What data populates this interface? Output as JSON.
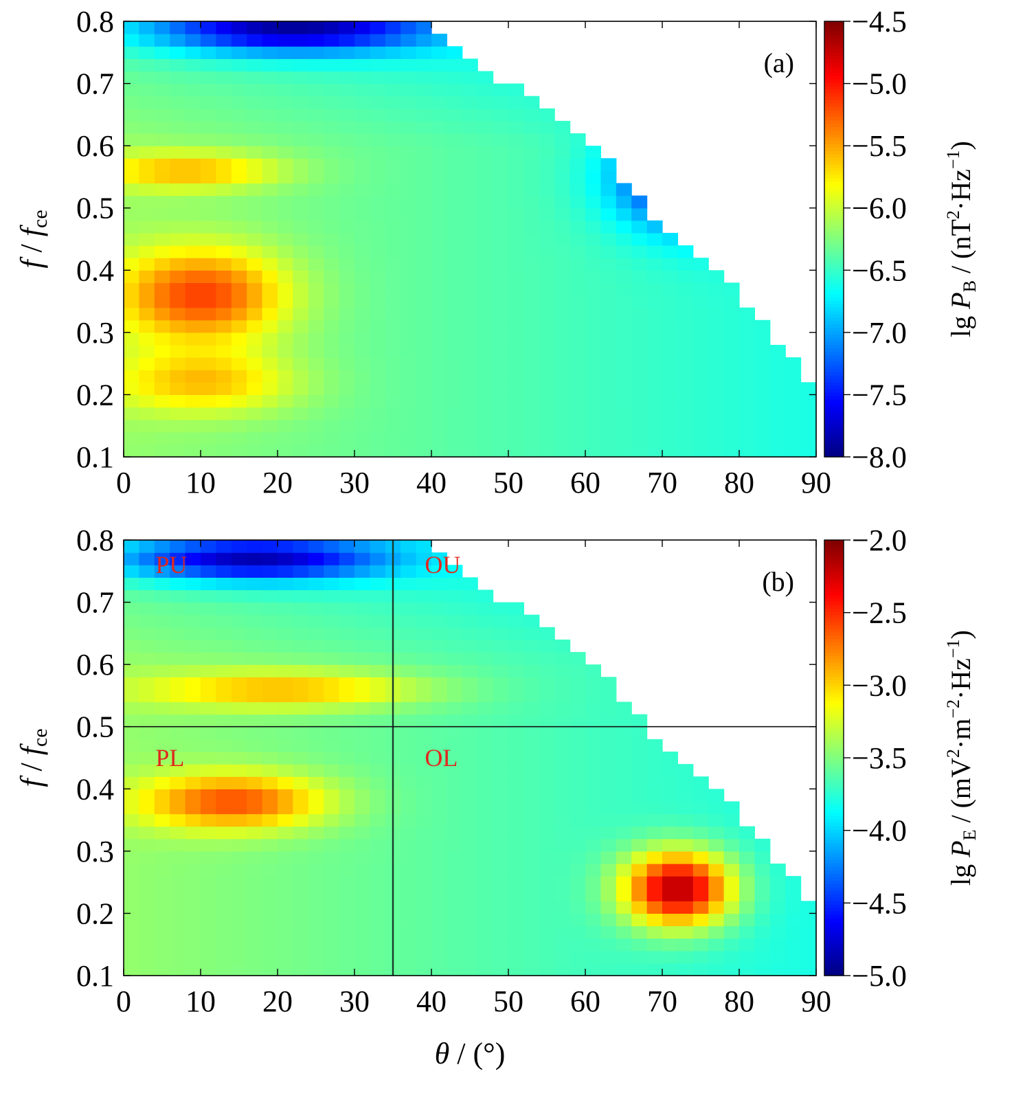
{
  "chart_data": [
    {
      "type": "heatmap",
      "panel_label": "(a)",
      "x": {
        "label_italic": "θ",
        "label_rest": " / (°)",
        "range": [
          0,
          90
        ],
        "ticks": [
          0,
          10,
          20,
          30,
          40,
          50,
          60,
          70,
          80,
          90
        ],
        "tick_labels": [
          "0",
          "10",
          "20",
          "30",
          "40",
          "50",
          "60",
          "70",
          "80",
          "90"
        ],
        "show_label": false
      },
      "y": {
        "label_italic_1": "f",
        "label_mid": " / ",
        "label_italic_2": "f",
        "label_sub": "ce",
        "range": [
          0.1,
          0.8
        ],
        "ticks": [
          0.1,
          0.2,
          0.3,
          0.4,
          0.5,
          0.6,
          0.7,
          0.8
        ],
        "tick_labels": [
          "0.1",
          "0.2",
          "0.3",
          "0.4",
          "0.5",
          "0.6",
          "0.7",
          "0.8"
        ]
      },
      "colorbar": {
        "label": "lg PB / (nT²·Hz⁻¹)",
        "label_parts": {
          "lg": "lg ",
          "P": "P",
          "sub": "B",
          "rest": " / (nT",
          "sup1": "2",
          "mid": "·Hz",
          "sup2": "−1",
          "end": ")"
        },
        "range": [
          -8.0,
          -4.5
        ],
        "ticks": [
          -8.0,
          -7.5,
          -7.0,
          -6.5,
          -6.0,
          -5.5,
          -5.0,
          -4.5
        ],
        "tick_labels": [
          "−8.0",
          "−7.5",
          "−7.0",
          "−6.5",
          "−6.0",
          "−5.5",
          "−5.0",
          "−4.5"
        ],
        "colormap": "jet"
      },
      "grid": false,
      "cells": {
        "theta_step": 2.0,
        "freq_step": 0.02
      },
      "boundary_theta_max": [
        {
          "f": 0.1,
          "theta": 90
        },
        {
          "f": 0.2,
          "theta": 90
        },
        {
          "f": 0.3,
          "theta": 84
        },
        {
          "f": 0.4,
          "theta": 77
        },
        {
          "f": 0.5,
          "theta": 68
        },
        {
          "f": 0.6,
          "theta": 62
        },
        {
          "f": 0.7,
          "theta": 50
        },
        {
          "f": 0.8,
          "theta": 38
        }
      ],
      "features": [
        {
          "theta": 10,
          "f": 0.36,
          "value": -5.15,
          "sigma_theta": 11,
          "sigma_f": 0.075
        },
        {
          "theta": 8,
          "f": 0.56,
          "value": -5.55,
          "sigma_theta": 12,
          "sigma_f": 0.03
        },
        {
          "theta": 10,
          "f": 0.22,
          "value": -5.6,
          "sigma_theta": 12,
          "sigma_f": 0.05
        },
        {
          "theta": 75,
          "f": 0.55,
          "value": -8.0,
          "sigma_theta": 10,
          "sigma_f": 0.08
        },
        {
          "theta": 22,
          "f": 0.79,
          "value": -7.9,
          "sigma_theta": 18,
          "sigma_f": 0.04
        }
      ]
    },
    {
      "type": "heatmap",
      "panel_label": "(b)",
      "x": {
        "label_italic": "θ",
        "label_rest": " / (°)",
        "range": [
          0,
          90
        ],
        "ticks": [
          0,
          10,
          20,
          30,
          40,
          50,
          60,
          70,
          80,
          90
        ],
        "tick_labels": [
          "0",
          "10",
          "20",
          "30",
          "40",
          "50",
          "60",
          "70",
          "80",
          "90"
        ],
        "show_label": true
      },
      "y": {
        "label_italic_1": "f",
        "label_mid": " / ",
        "label_italic_2": "f",
        "label_sub": "ce",
        "range": [
          0.1,
          0.8
        ],
        "ticks": [
          0.1,
          0.2,
          0.3,
          0.4,
          0.5,
          0.6,
          0.7,
          0.8
        ],
        "tick_labels": [
          "0.1",
          "0.2",
          "0.3",
          "0.4",
          "0.5",
          "0.6",
          "0.7",
          "0.8"
        ]
      },
      "colorbar": {
        "label": "lg PE / (mV²·m⁻²·Hz⁻¹)",
        "label_parts": {
          "lg": "lg ",
          "P": "P",
          "sub": "E",
          "rest": " / (mV",
          "sup1": "2",
          "mid": "·m",
          "sup2": "−2",
          "mid2": "·Hz",
          "sup3": "−1",
          "end": ")"
        },
        "range": [
          -5.0,
          -2.0
        ],
        "ticks": [
          -5.0,
          -4.5,
          -4.0,
          -3.5,
          -3.0,
          -2.5,
          -2.0
        ],
        "tick_labels": [
          "−5.0",
          "−4.5",
          "−4.0",
          "−3.5",
          "−3.0",
          "−2.5",
          "−2.0"
        ],
        "colormap": "jet"
      },
      "grid": false,
      "cells": {
        "theta_step": 2.0,
        "freq_step": 0.02
      },
      "boundary_theta_max": [
        {
          "f": 0.1,
          "theta": 90
        },
        {
          "f": 0.2,
          "theta": 90
        },
        {
          "f": 0.3,
          "theta": 84
        },
        {
          "f": 0.4,
          "theta": 77
        },
        {
          "f": 0.5,
          "theta": 68
        },
        {
          "f": 0.6,
          "theta": 62
        },
        {
          "f": 0.7,
          "theta": 50
        },
        {
          "f": 0.8,
          "theta": 38
        }
      ],
      "features": [
        {
          "theta": 14,
          "f": 0.38,
          "value": -2.6,
          "sigma_theta": 12,
          "sigma_f": 0.045
        },
        {
          "theta": 72,
          "f": 0.24,
          "value": -2.15,
          "sigma_theta": 7,
          "sigma_f": 0.06
        },
        {
          "theta": 20,
          "f": 0.56,
          "value": -2.9,
          "sigma_theta": 18,
          "sigma_f": 0.03
        },
        {
          "theta": 17,
          "f": 0.77,
          "value": -4.85,
          "sigma_theta": 17,
          "sigma_f": 0.035
        }
      ],
      "reference_lines": [
        {
          "orientation": "vertical",
          "theta": 35
        },
        {
          "orientation": "horizontal",
          "f": 0.5
        }
      ],
      "region_labels": [
        {
          "text": "PU",
          "theta": 2,
          "f": 0.76
        },
        {
          "text": "OU",
          "theta": 37,
          "f": 0.76
        },
        {
          "text": "PL",
          "theta": 2,
          "f": 0.45
        },
        {
          "text": "OL",
          "theta": 37,
          "f": 0.45
        }
      ],
      "region_label_color": "#e0281e"
    }
  ]
}
